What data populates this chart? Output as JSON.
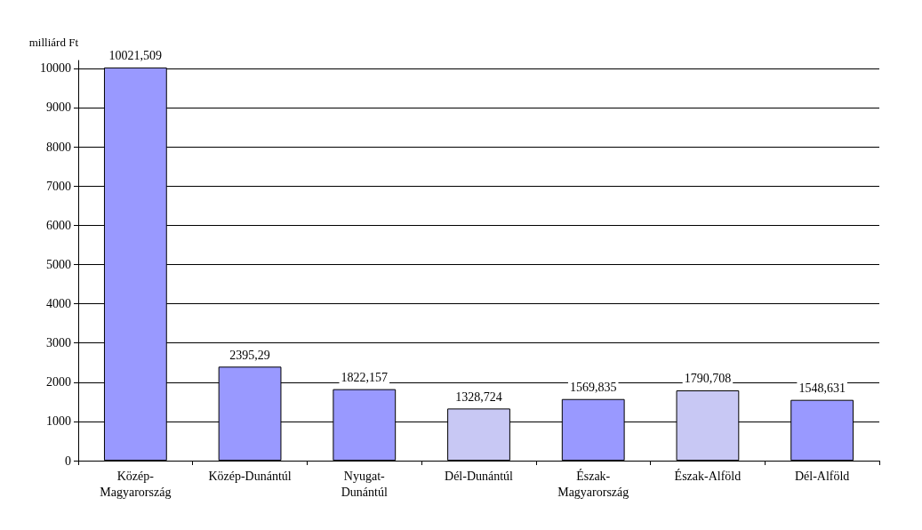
{
  "chart_data": {
    "type": "bar",
    "ylabel": "milliárd Ft",
    "categories": [
      "Közép-\nMagyarország",
      "Közép-Dunántúl",
      "Nyugat-\nDunántúl",
      "Dél-Dunántúl",
      "Észak-\nMagyarország",
      "Észak-Alföld",
      "Dél-Alföld"
    ],
    "values": [
      10021.509,
      2395.29,
      1822.157,
      1328.724,
      1569.835,
      1790.708,
      1548.631
    ],
    "value_labels": [
      "10021,509",
      "2395,29",
      "1822,157",
      "1328,724",
      "1569,835",
      "1790,708",
      "1548,631"
    ],
    "colors": [
      "#9999ff",
      "#9999ff",
      "#9999ff",
      "#c8c8f4",
      "#9999ff",
      "#c8c8f4",
      "#9999ff"
    ],
    "ylim": [
      0,
      10200
    ],
    "yticks": [
      0,
      1000,
      2000,
      3000,
      4000,
      5000,
      6000,
      7000,
      8000,
      9000,
      10000
    ],
    "grid": "y"
  }
}
